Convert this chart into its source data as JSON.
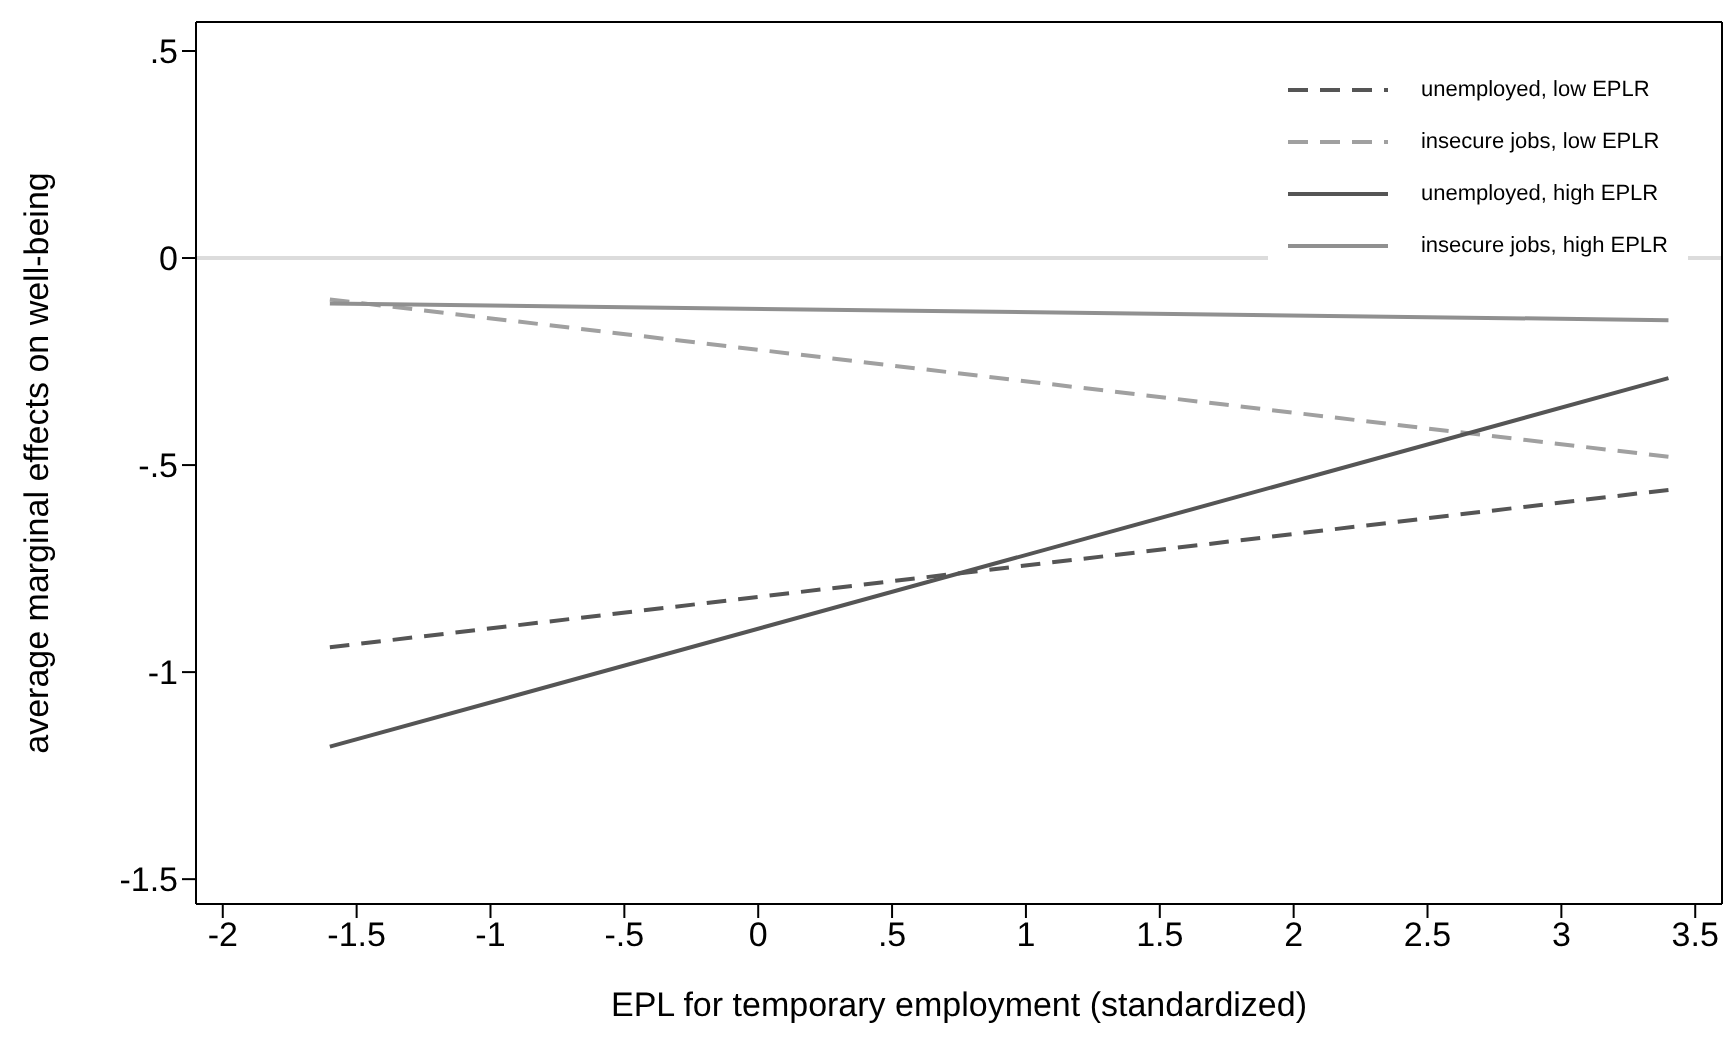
{
  "chart_data": {
    "type": "line",
    "xlabel": "EPL for temporary employment (standardized)",
    "ylabel": "average marginal effects on well-being",
    "x": [
      -1.6,
      3.4
    ],
    "series": [
      {
        "name": "unemployed, low EPLR",
        "color": "#555555",
        "line_style": "dashed",
        "values": [
          -0.94,
          -0.56
        ]
      },
      {
        "name": "insecure jobs, low EPLR",
        "color": "#a0a0a0",
        "line_style": "dashed",
        "values": [
          -0.1,
          -0.48
        ]
      },
      {
        "name": "unemployed, high EPLR",
        "color": "#555555",
        "line_style": "solid",
        "values": [
          -1.18,
          -0.29
        ]
      },
      {
        "name": "insecure jobs, high EPLR",
        "color": "#909090",
        "line_style": "solid",
        "values": [
          -0.11,
          -0.15
        ]
      }
    ],
    "xlim": [
      -2.1,
      3.6
    ],
    "xticks": [
      -2,
      {
        "value": -1.5,
        "label": "-1.5"
      },
      -1,
      {
        "value": -0.5,
        "label": "-.5"
      },
      0,
      {
        "value": 0.5,
        "label": ".5"
      },
      1,
      {
        "value": 1.5,
        "label": "1.5"
      },
      2,
      {
        "value": 2.5,
        "label": "2.5"
      },
      3,
      {
        "value": 3.5,
        "label": "3.5"
      }
    ],
    "ylim": [
      -1.56,
      0.57
    ],
    "yticks": [
      {
        "value": 0.5,
        "label": ".5"
      },
      0,
      {
        "value": -0.5,
        "label": "-.5"
      },
      -1,
      {
        "value": -1.5,
        "label": "-1.5"
      }
    ],
    "ref_lines": [
      {
        "axis": "y",
        "value": 0,
        "color": "#dcdcdc"
      }
    ],
    "grid": false,
    "legend": "top right",
    "marker": "none"
  }
}
